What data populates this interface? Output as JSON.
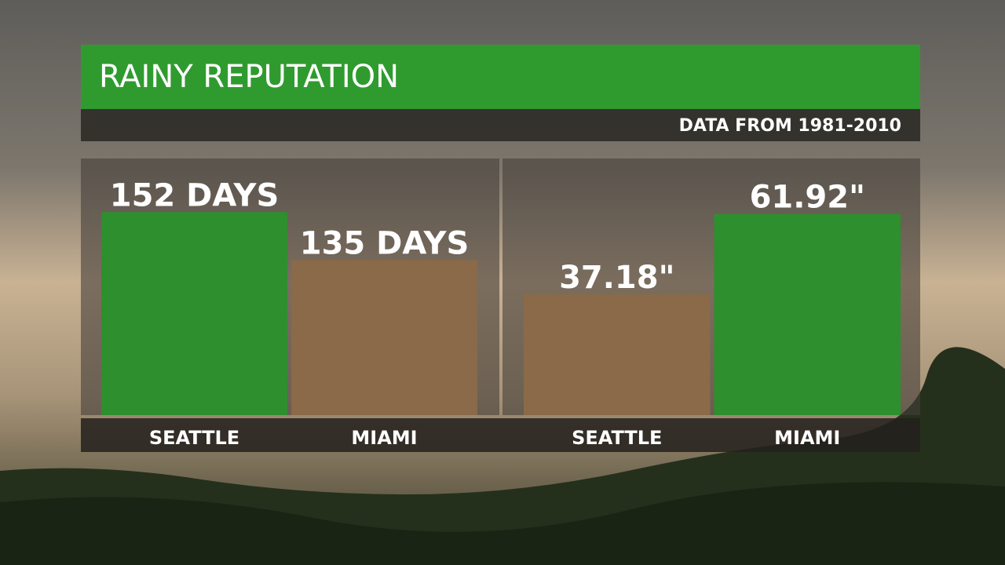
{
  "title": "RAINY REPUTATION",
  "subtitle": "DATA FROM 1981-2010",
  "chart_data": [
    {
      "type": "bar",
      "categories": [
        "SEATTLE",
        "MIAMI"
      ],
      "values": [
        152,
        135
      ],
      "value_labels": [
        "152 DAYS",
        "135 DAYS"
      ],
      "colors": [
        "#2e8f2e",
        "#8a6a48"
      ],
      "ylim": [
        80,
        171
      ]
    },
    {
      "type": "bar",
      "categories": [
        "SEATTLE",
        "MIAMI"
      ],
      "values": [
        37.18,
        61.92
      ],
      "value_labels": [
        "37.18\"",
        "61.92\""
      ],
      "colors": [
        "#8a6a48",
        "#2e8f2e"
      ],
      "ylim": [
        0,
        79
      ]
    }
  ]
}
